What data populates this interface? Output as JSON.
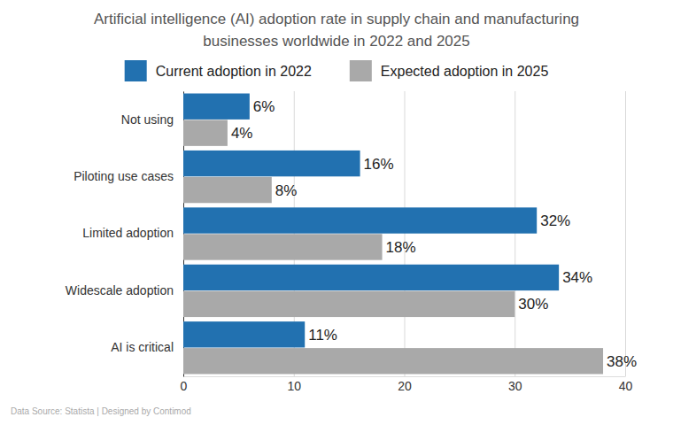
{
  "chart_data": {
    "type": "bar",
    "orientation": "horizontal",
    "title": "Artificial intelligence (AI) adoption rate in supply chain and manufacturing businesses worldwide in 2022 and 2025",
    "source": "Data Source: Statista | Designed by Contimod",
    "categories": [
      "Not using",
      "Piloting use cases",
      "Limited adoption",
      "Widescale adoption",
      "AI is critical"
    ],
    "series": [
      {
        "name": "Current adoption in 2022",
        "color": "#2271b0",
        "values": [
          6,
          16,
          32,
          34,
          11
        ],
        "value_labels": [
          "6%",
          "16%",
          "32%",
          "34%",
          "11%"
        ]
      },
      {
        "name": "Expected adoption in 2025",
        "color": "#a9a9a9",
        "values": [
          4,
          8,
          18,
          30,
          38
        ],
        "value_labels": [
          "4%",
          "8%",
          "18%",
          "30%",
          "38%"
        ]
      }
    ],
    "xlim": [
      0,
      40
    ],
    "xticks": [
      0,
      10,
      20,
      30,
      40
    ],
    "grid": true,
    "legend": "top",
    "data_labels": true
  }
}
